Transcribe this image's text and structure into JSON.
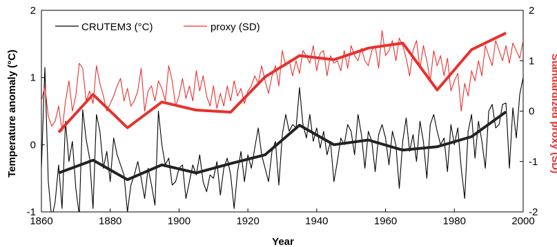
{
  "chart_data": {
    "type": "line",
    "xlabel": "Year",
    "ylabel_left": "Temperature anomaly (°C)",
    "ylabel_right": "Standardized proxy (SD)",
    "xlim": [
      1860,
      2000
    ],
    "ylim_left": [
      -1,
      2
    ],
    "ylim_right": [
      -2,
      2
    ],
    "x_ticks": [
      1860,
      1880,
      1900,
      1920,
      1940,
      1960,
      1980,
      2000
    ],
    "y_ticks_left": [
      -1,
      0,
      1,
      2
    ],
    "y_ticks_right": [
      -2,
      -1,
      0,
      1,
      2
    ],
    "legend": [
      {
        "label": "CRUTEM3 (°C)",
        "color": "#000000"
      },
      {
        "label": "proxy (SD)",
        "color": "#e8302e"
      }
    ],
    "series": [
      {
        "name": "CRUTEM3 (°C)",
        "axis": "left",
        "color": "#000000",
        "style": "thin",
        "x_start": 1860,
        "y": [
          -0.35,
          1.15,
          -0.55,
          -1.1,
          -0.85,
          -0.3,
          -0.95,
          0.35,
          -0.25,
          0.05,
          -0.65,
          -1.05,
          0.52,
          0.08,
          -0.2,
          -0.95,
          0.45,
          0.2,
          -0.35,
          -0.1,
          -0.55,
          0.1,
          -0.15,
          -0.3,
          -0.45,
          -1.0,
          -0.6,
          -0.45,
          -0.25,
          -0.5,
          -0.8,
          -0.35,
          -0.6,
          -0.9,
          0.5,
          0.0,
          -0.3,
          -0.2,
          -0.6,
          -0.55,
          -0.35,
          -0.3,
          -0.8,
          -0.55,
          -0.3,
          -0.45,
          -0.15,
          -0.55,
          -0.7,
          -0.45,
          -0.5,
          -0.25,
          -0.75,
          -0.35,
          -0.2,
          -0.45,
          -0.95,
          -0.4,
          -0.1,
          -0.55,
          -0.15,
          -0.35,
          -0.05,
          0.25,
          -0.15,
          -0.35,
          -0.55,
          -0.1,
          0.05,
          -0.6,
          0.15,
          0.45,
          0.2,
          0.3,
          0.25,
          0.85,
          0.3,
          0.1,
          0.45,
          0.05,
          0.25,
          -0.05,
          0.2,
          -0.15,
          0.05,
          -0.55,
          -0.25,
          0.1,
          0.0,
          0.3,
          0.2,
          -0.15,
          0.45,
          0.15,
          -0.35,
          0.2,
          0.05,
          -0.4,
          0.15,
          0.3,
          0.1,
          -0.3,
          0.2,
          0.0,
          -0.65,
          0.05,
          0.4,
          -0.1,
          0.15,
          -0.25,
          0.35,
          0.05,
          -0.5,
          0.3,
          0.45,
          0.2,
          0.0,
          0.1,
          -0.4,
          0.3,
          0.0,
          0.25,
          -0.35,
          -0.8,
          0.2,
          0.45,
          -0.2,
          0.35,
          0.05,
          -0.35,
          0.5,
          0.6,
          0.25,
          0.3,
          0.6,
          0.62,
          -0.35,
          0.55,
          0.1,
          0.75,
          1.0,
          0.35
        ]
      },
      {
        "name": "proxy (SD)",
        "axis": "right",
        "color": "#e8302e",
        "style": "thin",
        "x_start": 1860,
        "y": [
          0.2,
          0.5,
          -0.1,
          -0.3,
          -0.2,
          0.1,
          -0.4,
          0.2,
          0.6,
          0.0,
          0.3,
          0.95,
          0.85,
          0.2,
          0.4,
          0.15,
          0.9,
          0.55,
          0.3,
          0.0,
          0.15,
          0.3,
          0.5,
          0.65,
          0.2,
          0.45,
          0.1,
          0.2,
          0.4,
          0.85,
          0.0,
          0.4,
          0.5,
          0.2,
          0.6,
          0.45,
          0.2,
          0.9,
          0.6,
          0.1,
          0.3,
          0.65,
          0.25,
          0.5,
          0.2,
          0.8,
          0.4,
          0.7,
          0.3,
          0.1,
          0.5,
          0.05,
          0.35,
          0.1,
          0.5,
          0.2,
          0.6,
          0.3,
          0.45,
          0.15,
          0.4,
          0.5,
          0.7,
          0.55,
          0.9,
          0.6,
          0.35,
          0.7,
          0.9,
          0.5,
          1.2,
          0.9,
          1.0,
          0.7,
          1.0,
          0.75,
          1.2,
          1.1,
          0.95,
          1.3,
          0.8,
          1.15,
          1.2,
          0.7,
          1.1,
          0.95,
          1.0,
          0.8,
          1.2,
          0.85,
          1.3,
          1.1,
          1.0,
          1.25,
          1.0,
          0.9,
          1.2,
          1.3,
          0.85,
          1.6,
          1.1,
          1.2,
          1.4,
          1.0,
          1.45,
          1.3,
          1.05,
          0.7,
          1.2,
          1.4,
          0.85,
          1.3,
          1.0,
          0.6,
          1.2,
          0.9,
          1.1,
          0.7,
          1.05,
          0.4,
          0.6,
          0.75,
          0.0,
          0.55,
          0.3,
          0.8,
          0.6,
          1.0,
          0.7,
          1.3,
          1.1,
          0.9,
          1.4,
          1.2,
          1.0,
          1.3,
          0.95,
          1.35,
          1.2,
          1.05,
          1.4,
          1.1,
          0.85,
          0.4
        ]
      },
      {
        "name": "CRUTEM3 decadal",
        "axis": "left",
        "color": "#222222",
        "style": "thick",
        "x": [
          1865,
          1875,
          1885,
          1895,
          1905,
          1915,
          1925,
          1935,
          1945,
          1955,
          1965,
          1975,
          1985,
          1995
        ],
        "y": [
          -0.42,
          -0.23,
          -0.52,
          -0.3,
          -0.42,
          -0.28,
          -0.15,
          0.29,
          0.0,
          0.07,
          -0.08,
          -0.03,
          0.12,
          0.49
        ]
      },
      {
        "name": "proxy decadal",
        "axis": "right",
        "color": "#e8302e",
        "style": "thick",
        "x": [
          1865,
          1875,
          1885,
          1895,
          1905,
          1915,
          1925,
          1935,
          1945,
          1955,
          1965,
          1975,
          1985,
          1995
        ],
        "y": [
          -0.42,
          0.33,
          -0.33,
          0.18,
          0.02,
          -0.02,
          0.68,
          1.1,
          1.02,
          1.25,
          1.35,
          0.42,
          1.22,
          1.55
        ]
      }
    ]
  }
}
